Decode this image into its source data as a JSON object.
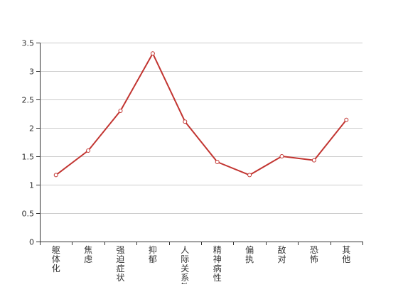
{
  "chart_data": {
    "type": "line",
    "categories": [
      "躯体化",
      "焦虑",
      "强迫症状",
      "抑郁",
      "人际关系敏感",
      "精神病性",
      "偏执",
      "敌对",
      "恐怖",
      "其他"
    ],
    "series": [
      {
        "values": [
          1.17,
          1.6,
          2.3,
          3.31,
          2.11,
          1.4,
          1.17,
          1.5,
          1.43,
          2.14
        ],
        "color": "#c23531"
      }
    ],
    "y_ticks": [
      "0",
      "0.5",
      "1",
      "1.5",
      "2",
      "2.5",
      "3",
      "3.5"
    ],
    "ylim": [
      0,
      3.5
    ],
    "grid": true,
    "legend": "none",
    "title": "",
    "xlabel": "",
    "ylabel": ""
  }
}
